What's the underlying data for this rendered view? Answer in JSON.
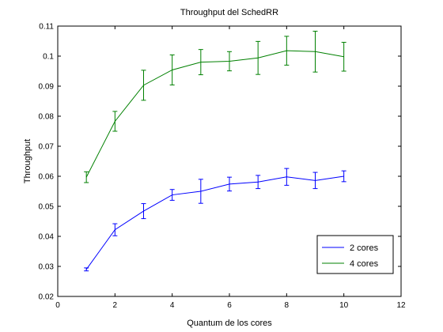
{
  "chart_data": {
    "type": "line",
    "title": "Throughput del SchedRR",
    "xlabel": "Quantum de los cores",
    "ylabel": "Throughput",
    "xlim": [
      0,
      12
    ],
    "ylim": [
      0.02,
      0.11
    ],
    "xticks": [
      0,
      2,
      4,
      6,
      8,
      10,
      12
    ],
    "xtick_labels": [
      "0",
      "2",
      "4",
      "6",
      "8",
      "10",
      "12"
    ],
    "yticks": [
      0.02,
      0.03,
      0.04,
      0.05,
      0.06,
      0.07,
      0.08,
      0.09,
      0.1,
      0.11
    ],
    "ytick_labels": [
      "0.02",
      "0.03",
      "0.04",
      "0.05",
      "0.06",
      "0.07",
      "0.08",
      "0.09",
      "0.1",
      "0.11"
    ],
    "grid": false,
    "legend_position": "bottom-right",
    "x": [
      1,
      2,
      3,
      4,
      5,
      6,
      7,
      8,
      9,
      10
    ],
    "series": [
      {
        "name": "2 cores",
        "color": "#0000ff",
        "values": [
          0.029,
          0.0422,
          0.0484,
          0.0538,
          0.055,
          0.0574,
          0.0581,
          0.0598,
          0.0586,
          0.06
        ],
        "errors": [
          0.0005,
          0.002,
          0.0025,
          0.0018,
          0.004,
          0.0023,
          0.0022,
          0.0028,
          0.0027,
          0.0018
        ]
      },
      {
        "name": "4 cores",
        "color": "#008000",
        "values": [
          0.0597,
          0.0783,
          0.0903,
          0.0954,
          0.098,
          0.0983,
          0.0994,
          0.1018,
          0.1015,
          0.0998
        ],
        "errors": [
          0.0018,
          0.0033,
          0.005,
          0.005,
          0.0042,
          0.0032,
          0.0055,
          0.0048,
          0.0068,
          0.0048
        ]
      }
    ]
  }
}
